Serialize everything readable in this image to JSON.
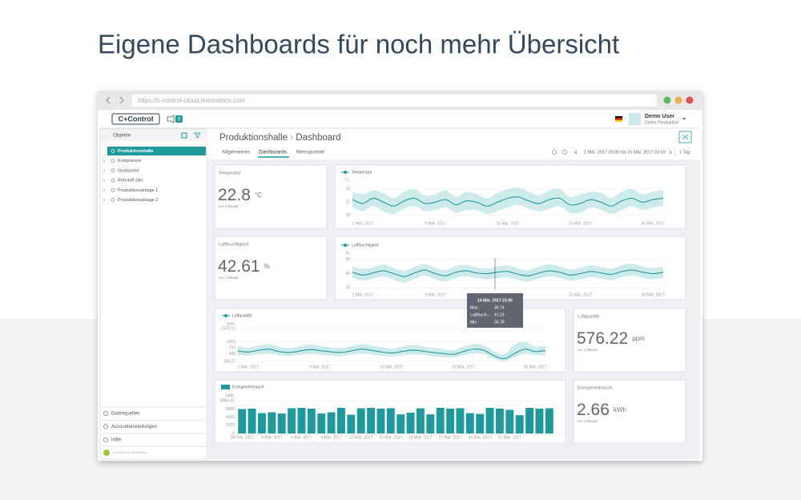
{
  "heading": "Eigene Dashboards für noch mehr Übersicht",
  "browser": {
    "url": "https://c-control-cloud.linemetrics.com"
  },
  "app": {
    "logo": "C+Control",
    "notifications": 0,
    "user": "Demo User",
    "company": "Demo Produktion"
  },
  "sidebar": {
    "title": "Objekte",
    "tree": [
      "Produktionshalle",
      "Kompressor",
      "Gasbündel",
      "Rohstoff-Silo",
      "Produktionsanlage 1",
      "Produktionsanlage 2"
    ],
    "footer": [
      "Datenquellen",
      "Accounteinstellungen",
      "Hilfe"
    ],
    "powered": "powered by LineMetrics"
  },
  "main": {
    "breadcrumb": [
      "Produktionshalle",
      "Dashboard"
    ],
    "tabs": [
      "Allgemeines",
      "Dashboards",
      "Messpunkte"
    ],
    "range": "1 Mär. 2017 00:00 bis 31 Mär. 2017 23:59",
    "interval": "1 Tag"
  },
  "widgets": [
    {
      "title": "Temperatur",
      "value": 22.8,
      "unit": "°C",
      "updated": "vor 1 Minute"
    },
    {
      "title": "Luftfeuchtigkeit",
      "value": 42.61,
      "unit": "%",
      "updated": "vor 1 Minute"
    },
    {
      "title": "Luftqualität",
      "value": 576.22,
      "unit": "ppm",
      "updated": "vor 1 Minute"
    },
    {
      "title": "Energieverbrauch",
      "value": 2.66,
      "unit": "kWh",
      "updated": "vor 1 Minute"
    }
  ],
  "chart_data": [
    {
      "type": "line",
      "unit": "°C",
      "x": [
        1,
        2,
        3,
        4,
        5,
        6,
        7,
        8,
        9,
        10,
        11,
        12,
        13,
        14,
        15,
        16,
        17,
        18,
        19,
        20,
        21,
        22,
        23,
        24,
        25,
        26,
        27,
        28,
        29,
        30,
        31
      ],
      "xlim": [
        1,
        31
      ],
      "xticks": [
        {
          "value": 2,
          "label": "2 Mär. 2017"
        },
        {
          "value": 9,
          "label": "9 Mär. 2017"
        },
        {
          "value": 16,
          "label": "16 Mär. 2017"
        },
        {
          "value": 23,
          "label": "23 Mär. 2017"
        },
        {
          "value": 30,
          "label": "30 Mär. 2017"
        }
      ],
      "ylim": [
        20.8,
        23.3
      ],
      "yticks": [
        21,
        22,
        23
      ],
      "series": [
        {
          "name": "Temperatur",
          "color": "#1f9a9c",
          "values": [
            22.2,
            21.9,
            22.3,
            22.0,
            21.7,
            22.1,
            22.3,
            21.9,
            22.0,
            22.2,
            21.8,
            22.1,
            22.0,
            21.7,
            22.0,
            22.3,
            22.4,
            22.1,
            21.9,
            22.2,
            22.3,
            21.8,
            21.9,
            22.2,
            22.0,
            21.7,
            22.1,
            22.3,
            22.0,
            22.2,
            22.3
          ]
        }
      ],
      "band": {
        "color": "#c6e8e8",
        "max": [
          22.8,
          22.6,
          22.9,
          22.7,
          22.3,
          22.8,
          23.0,
          22.5,
          22.6,
          22.9,
          22.4,
          22.8,
          22.6,
          22.3,
          22.7,
          23.0,
          23.1,
          22.8,
          22.5,
          22.9,
          23.0,
          22.4,
          22.6,
          22.8,
          22.7,
          22.3,
          22.8,
          23.0,
          22.6,
          22.8,
          22.9
        ],
        "min": [
          21.6,
          21.3,
          21.7,
          21.3,
          21.1,
          21.5,
          21.7,
          21.3,
          21.4,
          21.6,
          21.2,
          21.4,
          21.4,
          21.1,
          21.3,
          21.6,
          21.8,
          21.5,
          21.3,
          21.5,
          21.7,
          21.2,
          21.2,
          21.6,
          21.4,
          21.1,
          21.4,
          21.7,
          21.4,
          21.6,
          21.7
        ]
      }
    },
    {
      "type": "line",
      "unit": "%",
      "x": [
        1,
        2,
        3,
        4,
        5,
        6,
        7,
        8,
        9,
        10,
        11,
        12,
        13,
        14,
        15,
        16,
        17,
        18,
        19,
        20,
        21,
        22,
        23,
        24,
        25,
        26,
        27,
        28,
        29,
        30,
        31
      ],
      "xlim": [
        1,
        31
      ],
      "xticks": [
        {
          "value": 2,
          "label": "2 Mär. 2017"
        },
        {
          "value": 9,
          "label": "9 Mär. 2017"
        },
        {
          "value": 16,
          "label": "16 Mär. 2017"
        },
        {
          "value": 23,
          "label": "23 Mär. 2017"
        },
        {
          "value": 30,
          "label": "30 Mär. 2017"
        }
      ],
      "ylim": [
        18,
        62
      ],
      "yticks": [
        20,
        40,
        60
      ],
      "series": [
        {
          "name": "Luftfeuchtigkeit",
          "color": "#1f9a9c",
          "values": [
            42,
            38,
            41,
            44,
            40,
            36,
            41,
            45,
            40,
            37,
            42,
            44,
            41,
            40,
            42,
            43,
            39,
            37,
            41,
            44,
            42,
            38,
            40,
            43,
            41,
            39,
            43,
            45,
            42,
            40,
            42
          ]
        }
      ],
      "band": {
        "color": "#c6e8e8",
        "max": [
          50,
          47,
          49,
          53,
          48,
          44,
          50,
          54,
          48,
          45,
          51,
          52,
          49,
          47,
          50,
          52,
          47,
          45,
          50,
          53,
          50,
          46,
          48,
          52,
          49,
          47,
          52,
          54,
          50,
          48,
          50
        ],
        "min": [
          34,
          30,
          33,
          36,
          31,
          27,
          33,
          37,
          32,
          29,
          34,
          36,
          34,
          32,
          34,
          35,
          31,
          29,
          33,
          36,
          34,
          30,
          32,
          35,
          33,
          31,
          35,
          37,
          34,
          32,
          34
        ]
      },
      "tooltip": {
        "title": "14 Mär. 2017 23:00",
        "rows": [
          [
            "Max :",
            "46.74"
          ],
          [
            "Luftfeuch... :",
            "41.10"
          ],
          [
            "Min :",
            "34.39"
          ]
        ]
      }
    },
    {
      "type": "line",
      "unit": "ppm",
      "x": [
        1,
        2,
        3,
        4,
        5,
        6,
        7,
        8,
        9,
        10,
        11,
        12,
        13,
        14,
        15,
        16,
        17,
        18,
        19,
        20,
        21,
        22,
        23,
        24,
        25,
        26,
        27,
        28,
        29,
        30,
        31
      ],
      "xlim": [
        1,
        31
      ],
      "xticks": [
        {
          "value": 2,
          "label": "2 Mär. 2017"
        },
        {
          "value": 9,
          "label": "9 Mär. 2017"
        },
        {
          "value": 16,
          "label": "16 Mär. 2017"
        },
        {
          "value": 23,
          "label": "23 Mär. 2017"
        },
        {
          "value": 30,
          "label": "30 Mär. 2017"
        }
      ],
      "ylim": [
        184.37,
        1570.01
      ],
      "yticks": [
        184.37,
        500,
        750,
        1000,
        1570.01
      ],
      "series": [
        {
          "name": "Luftqualität",
          "color": "#1f9a9c",
          "values": [
            620,
            580,
            650,
            700,
            600,
            560,
            620,
            680,
            640,
            590,
            560,
            620,
            700,
            650,
            580,
            540,
            600,
            660,
            620,
            560,
            520,
            480,
            600,
            700,
            650,
            420,
            300,
            520,
            700,
            600,
            640
          ]
        }
      ],
      "band": {
        "color": "#c6e8e8",
        "max": [
          820,
          760,
          850,
          920,
          800,
          740,
          820,
          900,
          840,
          780,
          740,
          820,
          920,
          860,
          780,
          720,
          800,
          880,
          820,
          740,
          700,
          660,
          800,
          920,
          860,
          600,
          500,
          900,
          1000,
          820,
          840
        ],
        "min": [
          460,
          430,
          480,
          520,
          440,
          410,
          460,
          500,
          470,
          430,
          400,
          460,
          520,
          480,
          420,
          390,
          440,
          490,
          460,
          400,
          370,
          340,
          440,
          520,
          480,
          300,
          200,
          360,
          520,
          440,
          470
        ]
      }
    },
    {
      "type": "bar",
      "unit": "kWh",
      "categories": [
        "28 Feb. 2017",
        null,
        null,
        "3 Mär. 2017",
        null,
        null,
        "6 Mär. 2017",
        null,
        null,
        "9 Mär. 2017",
        null,
        null,
        "12 Mär. 2017",
        null,
        null,
        "15 Mär. 2017",
        null,
        null,
        "18 Mär. 2017",
        null,
        null,
        "21 Mär. 2017",
        null,
        null,
        "24 Mär. 2017",
        null,
        null,
        "27 Mär. 2017",
        null,
        null,
        null,
        null
      ],
      "ylim": [
        0,
        8063.41
      ],
      "yticks": [
        0,
        2000,
        4000,
        6000,
        8063.41
      ],
      "series": [
        {
          "name": "Energieverbrauch",
          "color": "#1f9a9c",
          "values": [
            6000,
            6100,
            5000,
            5200,
            4900,
            6200,
            6300,
            6100,
            4900,
            5200,
            6300,
            4600,
            6200,
            6300,
            6100,
            6200,
            4700,
            5100,
            6200,
            4700,
            6300,
            6100,
            6200,
            5000,
            4800,
            6300,
            6100,
            5800,
            4500,
            6300,
            6100,
            6200
          ]
        }
      ]
    }
  ]
}
